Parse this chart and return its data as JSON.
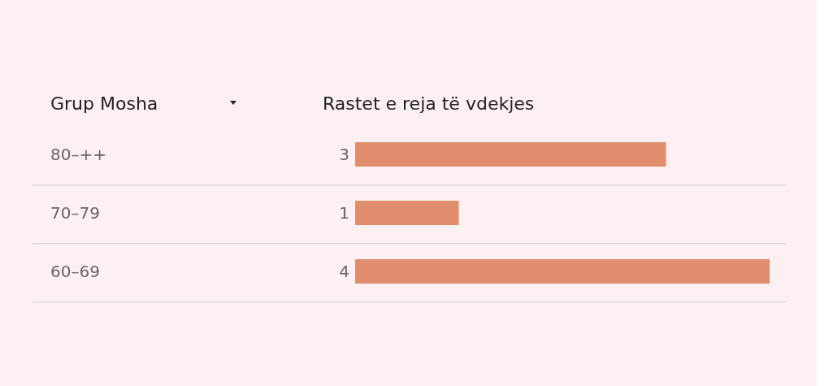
{
  "chart_data": {
    "type": "bar",
    "orientation": "horizontal",
    "ylabel": "Grup Mosha",
    "xlabel": "Rastet e reja të vdekjes",
    "categories": [
      "80–++",
      "70–79",
      "60–69"
    ],
    "values": [
      3,
      1,
      4
    ],
    "color": "#e08e6e",
    "data_labels": true
  }
}
